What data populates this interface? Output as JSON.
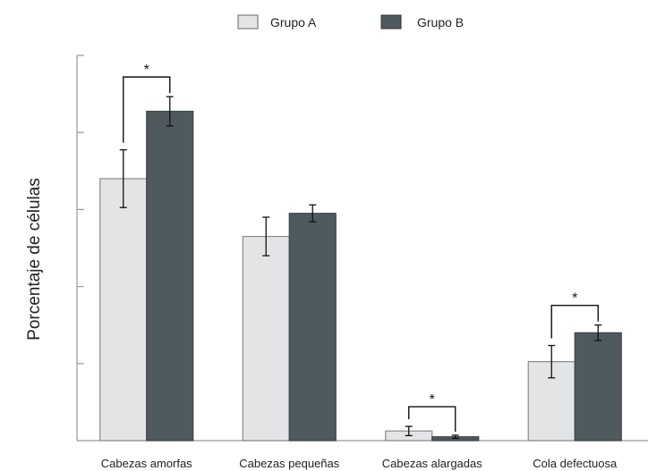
{
  "chart_data": {
    "type": "bar",
    "title": "",
    "xlabel": "",
    "ylabel": "Porcentaje de células",
    "categories": [
      "Cabezas amorfas",
      "Cabezas pequeñas",
      "Cabezas alargadas",
      "Cola defectuosa"
    ],
    "series": [
      {
        "name": "Grupo A",
        "color": "#e3e4e6",
        "values": [
          6.8,
          5.3,
          0.25,
          2.05
        ],
        "errors": [
          0.75,
          0.5,
          0.12,
          0.42
        ]
      },
      {
        "name": "Grupo B",
        "color": "#4e5a5d",
        "values": [
          8.55,
          5.9,
          0.1,
          2.8
        ],
        "errors": [
          0.38,
          0.22,
          0.04,
          0.2
        ]
      }
    ],
    "ylim": [
      0,
      10
    ],
    "y_ticks": [
      0,
      2,
      4,
      6,
      8,
      10
    ],
    "y_tick_labels_shown": false,
    "grid": false,
    "legend_position": "top-center",
    "significance": [
      {
        "category_index": 0,
        "label": "*"
      },
      {
        "category_index": 2,
        "label": "*"
      },
      {
        "category_index": 3,
        "label": "*"
      }
    ]
  }
}
